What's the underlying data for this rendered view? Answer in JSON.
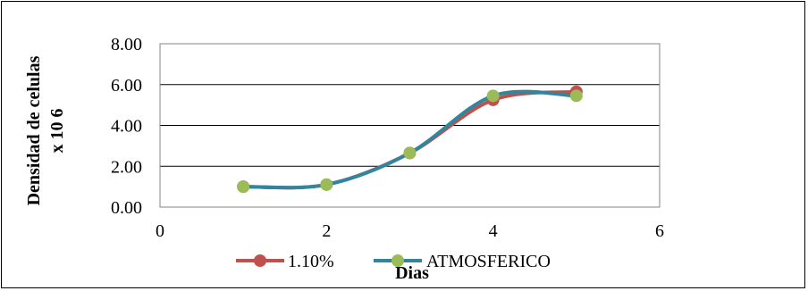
{
  "chart_data": {
    "type": "scatter",
    "title": "",
    "xlabel": "Dias",
    "ylabel": "Densidad de celulas x 10 6",
    "ylabel_lines": [
      "Densidad de celulas",
      "x 10 6"
    ],
    "xlim": [
      0,
      6
    ],
    "ylim": [
      0,
      8
    ],
    "x_ticks": [
      "0",
      "2",
      "4",
      "6"
    ],
    "x_tick_values": [
      0,
      2,
      4,
      6
    ],
    "y_ticks": [
      "0.00",
      "2.00",
      "4.00",
      "6.00",
      "8.00"
    ],
    "y_tick_values": [
      0,
      2,
      4,
      6,
      8
    ],
    "grid": "horizontal",
    "legend_position": "bottom",
    "smooth_lines": true,
    "series": [
      {
        "name": "1.10%",
        "color": "#C0504D",
        "marker": "circle",
        "x": [
          1,
          2,
          3,
          4,
          5
        ],
        "y": [
          1.0,
          1.1,
          2.65,
          5.25,
          5.65
        ]
      },
      {
        "name": "ATMOSFERICO",
        "color": "#31859C",
        "marker_color": "#9BBB59",
        "marker": "circle",
        "x": [
          1,
          2,
          3,
          4,
          5
        ],
        "y": [
          1.0,
          1.1,
          2.65,
          5.45,
          5.45
        ]
      }
    ]
  }
}
